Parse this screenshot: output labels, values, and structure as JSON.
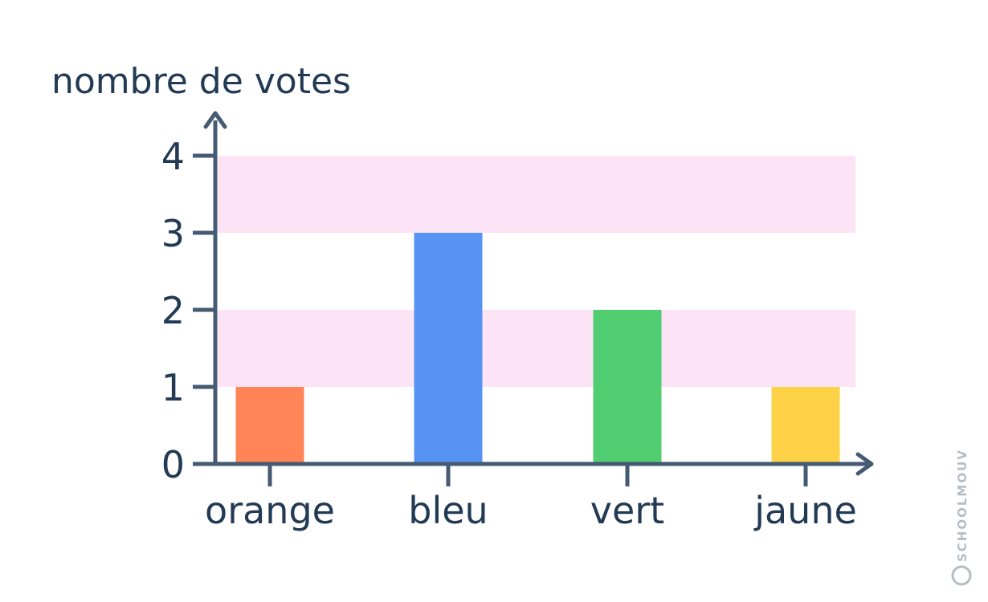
{
  "chart_data": {
    "type": "bar",
    "ylabel": "nombre de votes",
    "xlabel": "",
    "categories": [
      "orange",
      "bleu",
      "vert",
      "jaune"
    ],
    "values": [
      1,
      3,
      2,
      1
    ],
    "colors": [
      "#ff8457",
      "#5793f3",
      "#52ce72",
      "#fdd246"
    ],
    "ylim": [
      0,
      4
    ],
    "yticks": [
      "0",
      "1",
      "2",
      "3",
      "4"
    ],
    "band_color": "#fde3f6",
    "axis_color": "#455a73",
    "grid": false,
    "legend": "none"
  },
  "watermark": {
    "brand": "SCHOOLMOUV",
    "symbol": "©"
  }
}
